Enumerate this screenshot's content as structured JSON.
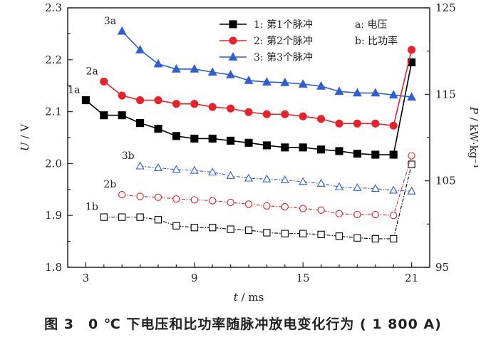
{
  "chart_data": {
    "type": "line",
    "caption": "图 3　0 ℃ 下电压和比功率随脉冲放电变化行为 ( 1 800 A)",
    "x_axis": {
      "label_var": "t",
      "label_unit": " / ms",
      "min": 2,
      "max": 22,
      "ticks": [
        3,
        9,
        15,
        21
      ],
      "tick_labels": [
        "3",
        "9",
        "15",
        "21"
      ]
    },
    "y_left": {
      "label_var": "U",
      "label_unit": " / V",
      "min": 1.8,
      "max": 2.3,
      "ticks": [
        1.8,
        1.9,
        2.0,
        2.1,
        2.2,
        2.3
      ],
      "tick_labels": [
        "1.8",
        "1.9",
        "2.0",
        "2.1",
        "2.2",
        "2.3"
      ]
    },
    "y_right": {
      "label_var": "P",
      "label_unit": " / kW·kg⁻¹",
      "min": 95,
      "max": 125,
      "ticks": [
        95,
        105,
        115,
        125
      ],
      "tick_labels": [
        "95",
        "105",
        "115",
        "125"
      ]
    },
    "legend": {
      "position": "top-right",
      "entries": [
        {
          "label": "1: 第1个脉冲",
          "color": "#000000",
          "marker": "square"
        },
        {
          "label": "2: 第2个脉冲",
          "color": "#e8222a",
          "marker": "circle"
        },
        {
          "label": "3: 第3个脉冲",
          "color": "#2e5fd4",
          "marker": "triangle"
        }
      ],
      "notes": [
        "a: 电压",
        "b: 比功率"
      ]
    },
    "series": [
      {
        "id": "1a",
        "label": "1a",
        "axis": "left",
        "color": "#000000",
        "marker": "square",
        "filled": true,
        "dashed": false,
        "x": [
          3,
          4,
          5,
          6,
          7,
          8,
          9,
          10,
          11,
          12,
          13,
          14,
          15,
          16,
          17,
          18,
          19,
          20,
          21
        ],
        "y": [
          2.122,
          2.093,
          2.093,
          2.078,
          2.067,
          2.053,
          2.048,
          2.048,
          2.044,
          2.04,
          2.035,
          2.031,
          2.031,
          2.027,
          2.024,
          2.019,
          2.017,
          2.017,
          2.195
        ]
      },
      {
        "id": "2a",
        "label": "2a",
        "axis": "left",
        "color": "#e8222a",
        "marker": "circle",
        "filled": true,
        "dashed": false,
        "x": [
          4,
          5,
          6,
          7,
          8,
          9,
          10,
          11,
          12,
          13,
          14,
          15,
          16,
          17,
          18,
          19,
          20,
          21
        ],
        "y": [
          2.158,
          2.131,
          2.122,
          2.122,
          2.115,
          2.115,
          2.109,
          2.106,
          2.099,
          2.095,
          2.095,
          2.091,
          2.086,
          2.077,
          2.077,
          2.077,
          2.073,
          2.219
        ]
      },
      {
        "id": "3a",
        "label": "3a",
        "axis": "left",
        "color": "#2e5fd4",
        "marker": "triangle",
        "filled": true,
        "dashed": false,
        "x": [
          5,
          6,
          7,
          8,
          9,
          10,
          11,
          12,
          13,
          14,
          15,
          16,
          17,
          18,
          19,
          20,
          21
        ],
        "y": [
          2.255,
          2.219,
          2.192,
          2.182,
          2.182,
          2.176,
          2.171,
          2.16,
          2.157,
          2.156,
          2.153,
          2.149,
          2.139,
          2.136,
          2.136,
          2.132,
          2.128
        ]
      },
      {
        "id": "1b",
        "label": "1b",
        "axis": "right",
        "color": "#000000",
        "marker": "square",
        "filled": false,
        "dashed": true,
        "x": [
          4,
          5,
          6,
          7,
          8,
          9,
          10,
          11,
          12,
          13,
          14,
          15,
          16,
          17,
          18,
          19,
          20,
          21
        ],
        "y": [
          100.8,
          100.8,
          100.8,
          100.5,
          99.8,
          99.6,
          99.6,
          99.4,
          99.3,
          99.0,
          98.9,
          98.9,
          98.8,
          98.6,
          98.4,
          98.3,
          98.3,
          106.9
        ]
      },
      {
        "id": "2b",
        "label": "2b",
        "axis": "right",
        "color": "#e8222a",
        "marker": "circle",
        "filled": false,
        "dashed": true,
        "x": [
          5,
          6,
          7,
          8,
          9,
          10,
          11,
          12,
          13,
          14,
          15,
          16,
          17,
          18,
          19,
          20,
          21
        ],
        "y": [
          103.4,
          103.2,
          103.1,
          102.9,
          102.8,
          102.7,
          102.5,
          102.3,
          102.1,
          102.0,
          101.8,
          101.6,
          101.2,
          101.1,
          101.1,
          101.0,
          107.9
        ]
      },
      {
        "id": "3b",
        "label": "3b",
        "axis": "right",
        "color": "#2e5fd4",
        "marker": "triangle",
        "filled": false,
        "dashed": true,
        "x": [
          6,
          7,
          8,
          9,
          10,
          11,
          12,
          13,
          14,
          15,
          16,
          17,
          18,
          19,
          20,
          21
        ],
        "y": [
          106.7,
          106.5,
          106.3,
          106.2,
          106.0,
          105.6,
          105.3,
          105.2,
          105.1,
          104.9,
          104.7,
          104.3,
          104.2,
          104.1,
          103.9,
          103.8
        ]
      }
    ]
  }
}
